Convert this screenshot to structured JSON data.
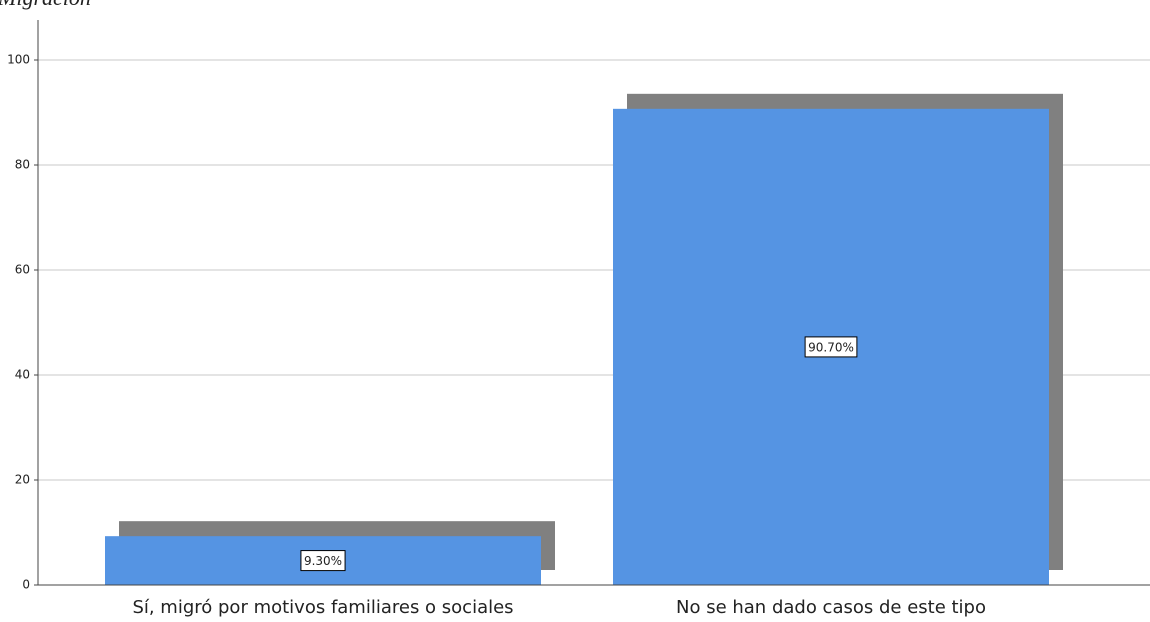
{
  "chart_data": {
    "type": "bar",
    "title": "Migración",
    "categories": [
      "Sí, migró por motivos familiares o sociales",
      "No se han dado casos de este tipo"
    ],
    "values": [
      9.3,
      90.7
    ],
    "value_labels": [
      "9.30%",
      "90.70%"
    ],
    "color": "#5594e3",
    "shadow_color": "#808080",
    "ylim": [
      0,
      100
    ],
    "yticks": [
      0,
      20,
      40,
      60,
      80,
      100
    ],
    "grid": true
  }
}
